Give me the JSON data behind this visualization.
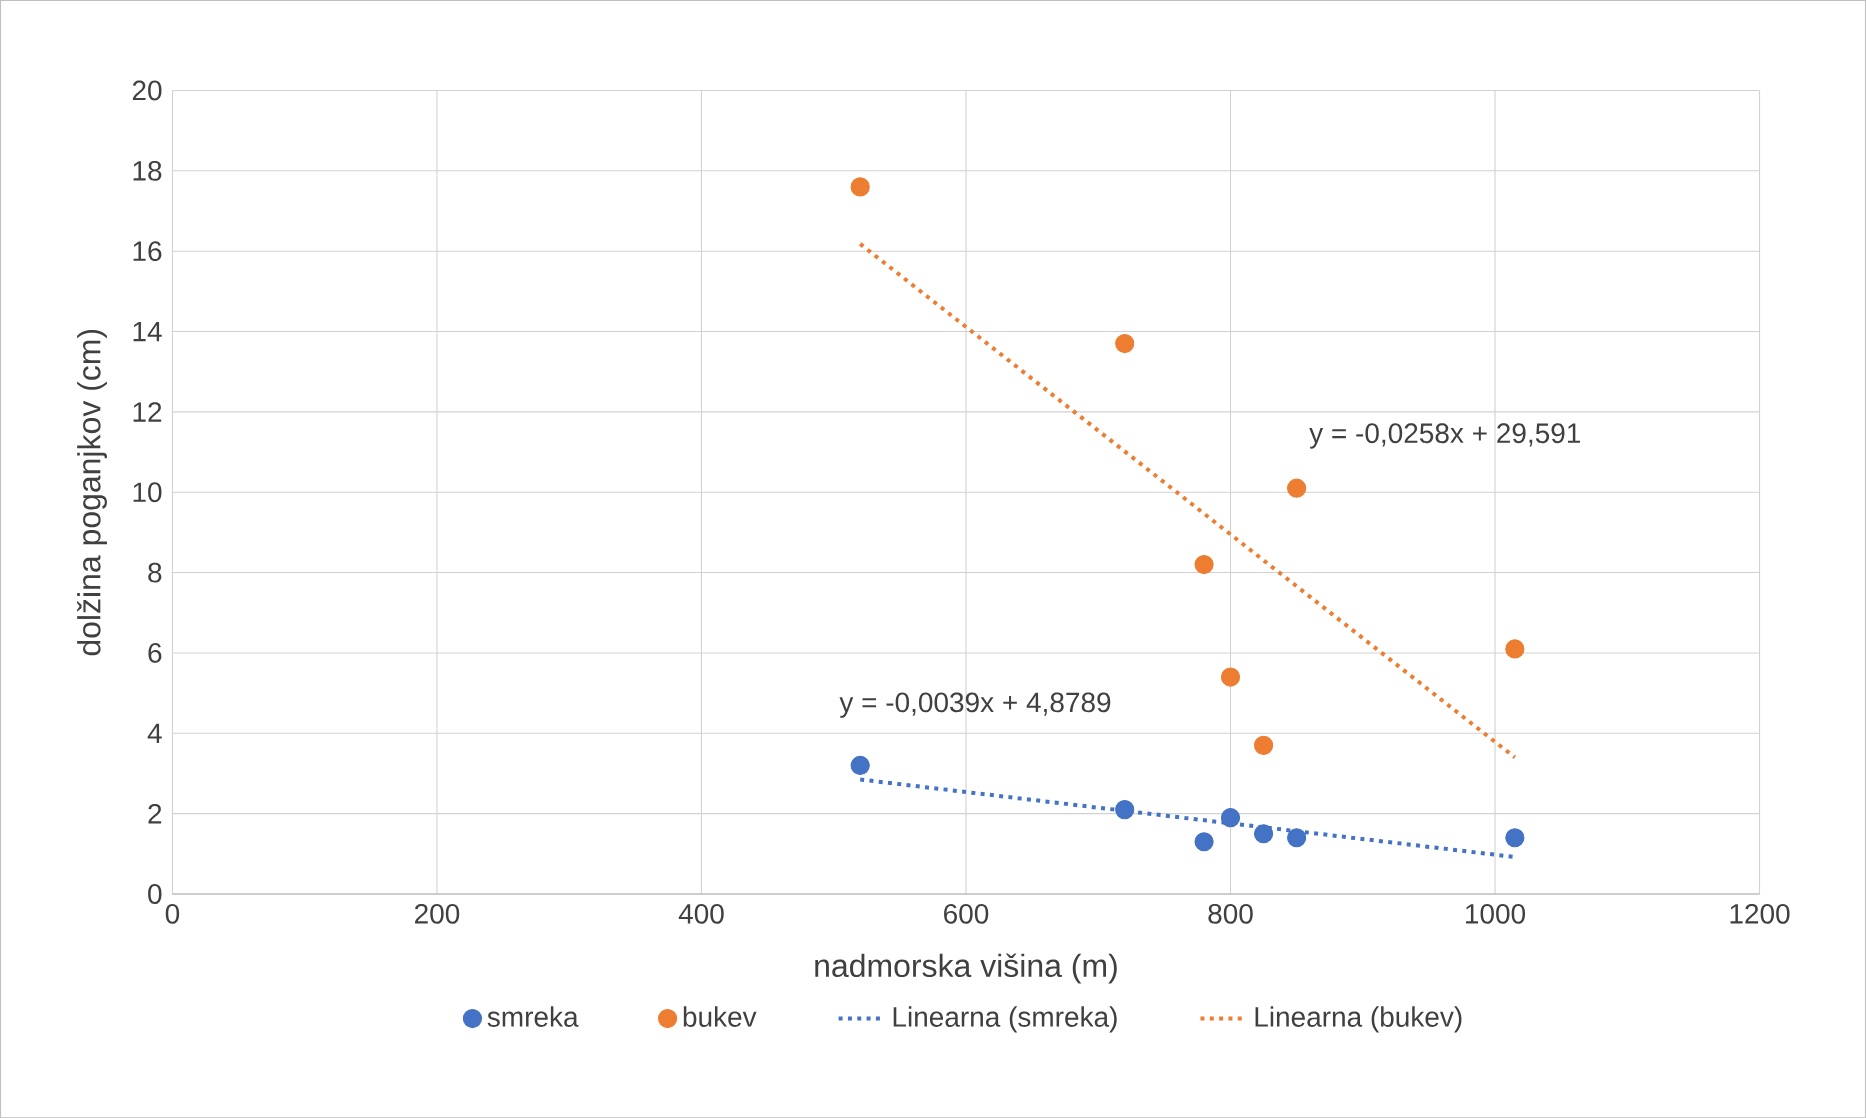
{
  "chart_data": {
    "type": "scatter",
    "xlabel": "nadmorska višina (m)",
    "ylabel": "dolžina poganjkov (cm)",
    "xlim": [
      0,
      1200
    ],
    "ylim": [
      0,
      20
    ],
    "xticks": [
      0,
      200,
      400,
      600,
      800,
      1000,
      1200
    ],
    "yticks": [
      0,
      2,
      4,
      6,
      8,
      10,
      12,
      14,
      16,
      18,
      20
    ],
    "grid": true,
    "legend": "bottom",
    "marker": "circle",
    "series": [
      {
        "name": "smreka",
        "color": "#4472c4",
        "x": [
          520,
          720,
          780,
          800,
          825,
          850,
          1015
        ],
        "values": [
          3.2,
          2.1,
          1.3,
          1.9,
          1.5,
          1.4,
          1.4
        ]
      },
      {
        "name": "bukev",
        "color": "#ed7d31",
        "x": [
          520,
          720,
          780,
          800,
          825,
          850,
          1015
        ],
        "values": [
          17.6,
          13.7,
          8.2,
          5.4,
          3.7,
          10.1,
          6.1
        ]
      },
      {
        "name": "Linearna (smreka)",
        "type": "line",
        "line_style": "dotted",
        "marker": "none",
        "color": "#4472c4",
        "x": [
          520,
          1015
        ],
        "values": [
          2.85,
          0.92
        ]
      },
      {
        "name": "Linearna (bukev)",
        "type": "line",
        "line_style": "dotted",
        "marker": "none",
        "color": "#ed7d31",
        "x": [
          520,
          1015
        ],
        "values": [
          16.18,
          3.4
        ]
      }
    ],
    "annotations": [
      "y = -0,0039x + 4,8789",
      "y = -0,0258x + 29,591"
    ]
  }
}
